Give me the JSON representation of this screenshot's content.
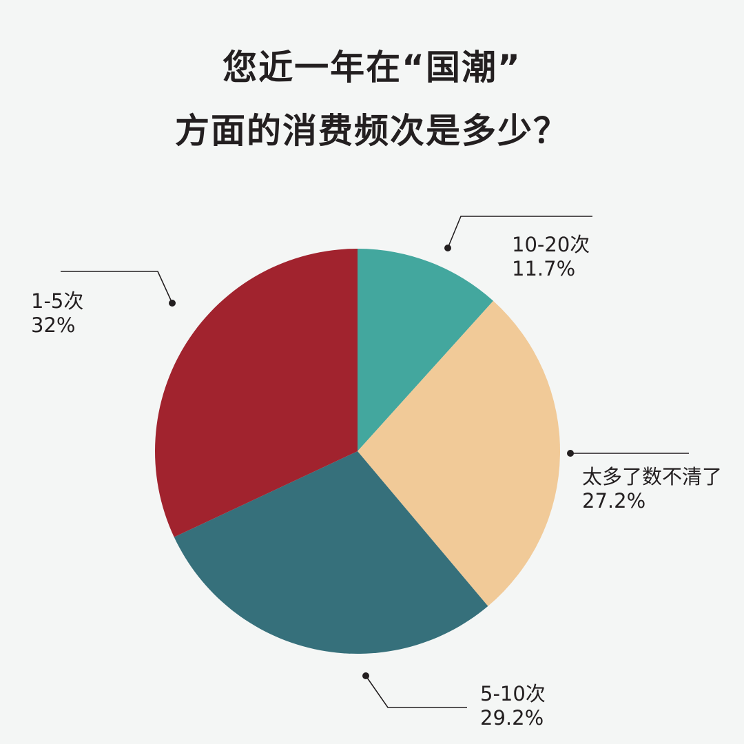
{
  "title": {
    "line1": "您近一年在“国潮”",
    "line2": "方面的消费频次是多少？"
  },
  "chart_data": {
    "type": "pie",
    "title": "您近一年在“国潮”方面的消费频次是多少？",
    "start_angle": "12 o'clock",
    "direction": "clockwise",
    "categories": [
      "10-20次",
      "太多了数不清了",
      "5-10次",
      "1-5次"
    ],
    "values": [
      11.7,
      27.2,
      29.2,
      32
    ],
    "unit": "%",
    "colors": [
      "#43a79e",
      "#f1ca98",
      "#36707b",
      "#a1232e"
    ],
    "labels": [
      {
        "name": "10-20次",
        "value": "11.7%"
      },
      {
        "name": "太多了数不清了",
        "value": "27.2%"
      },
      {
        "name": "5-10次",
        "value": "29.2%"
      },
      {
        "name": "1-5次",
        "value": "32%"
      }
    ],
    "legend": "none (leader-line callouts)"
  },
  "labels": {
    "s1": {
      "name": "10-20次",
      "value": "11.7%"
    },
    "s2": {
      "name": "太多了数不清了",
      "value": "27.2%"
    },
    "s3": {
      "name": "5-10次",
      "value": "29.2%"
    },
    "s4": {
      "name": "1-5次",
      "value": "32%"
    }
  },
  "colors": {
    "background": "#f4f6f5",
    "text": "#231f20",
    "leader_line": "#231f20"
  }
}
